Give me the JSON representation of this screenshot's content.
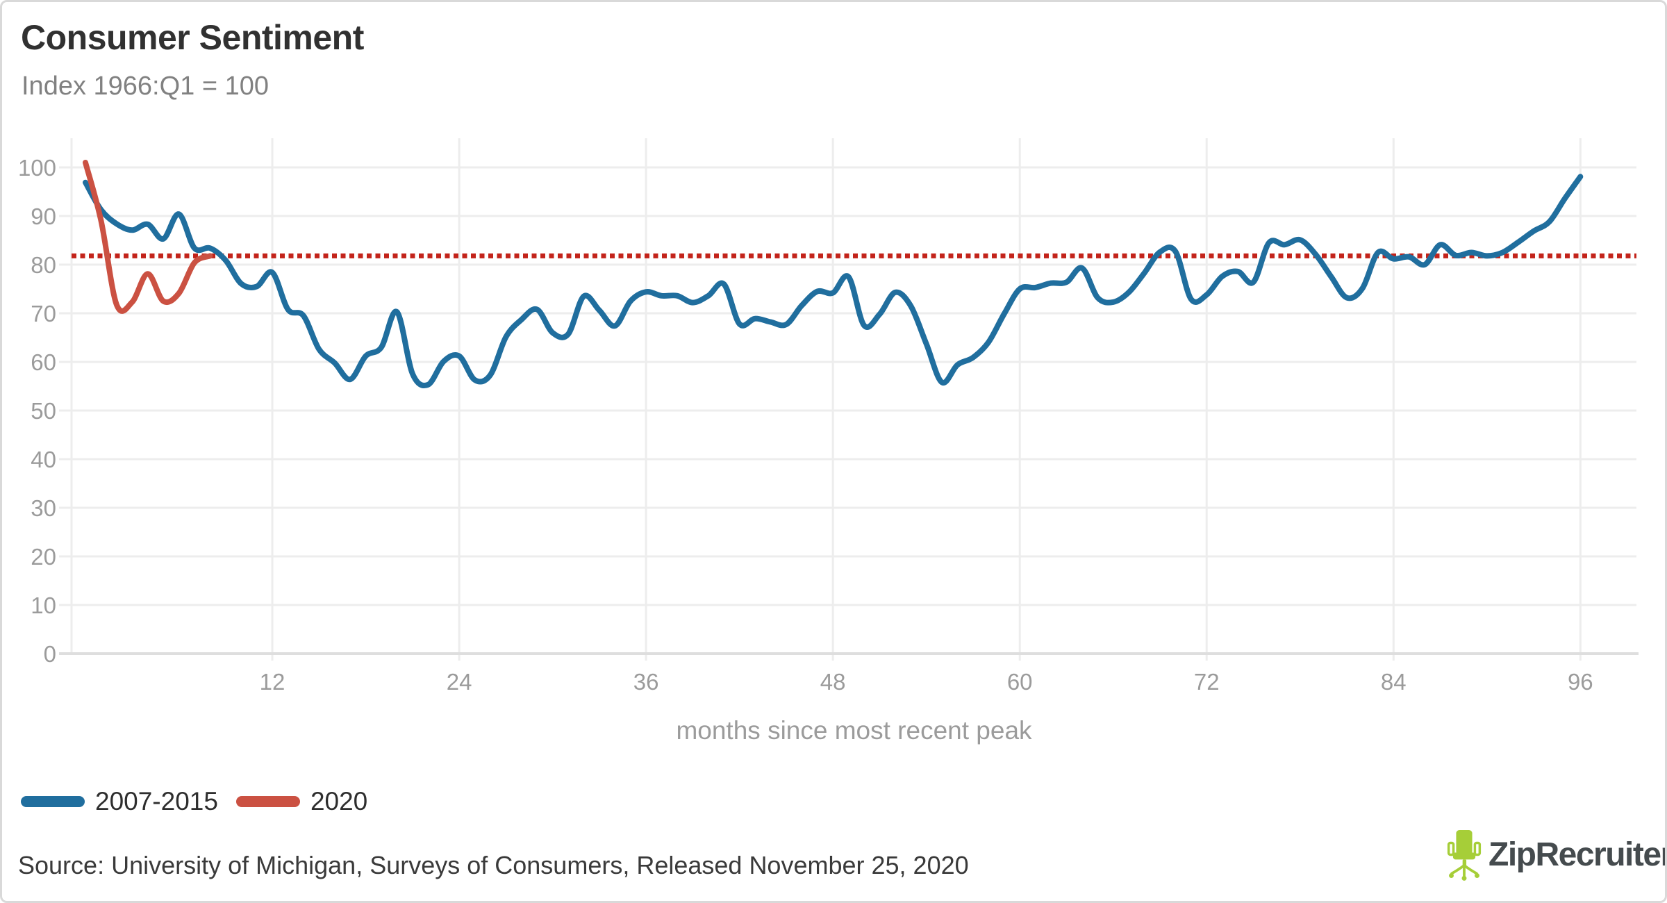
{
  "header": {
    "title": "Consumer Sentiment",
    "subtitle": "Index 1966:Q1 = 100"
  },
  "chart_data": {
    "type": "line",
    "title": "Consumer Sentiment",
    "subtitle": "Index 1966:Q1 = 100",
    "xlabel": "months since most recent peak",
    "ylabel": "",
    "xlim": [
      -1,
      100
    ],
    "ylim": [
      0,
      105
    ],
    "grid": true,
    "x_ticks": [
      12,
      24,
      36,
      48,
      60,
      72,
      84,
      96
    ],
    "y_ticks": [
      0,
      10,
      20,
      30,
      40,
      50,
      60,
      70,
      80,
      90,
      100
    ],
    "reference_line": {
      "value": 81.8,
      "style": "dotted",
      "color": "#c3231a",
      "meaning": "latest 2020 level"
    },
    "legend_position": "bottom-left",
    "series": [
      {
        "name": "2007-2015",
        "color": "#206e9e",
        "x_start": 0,
        "x_step": 1,
        "values": [
          96.9,
          91.3,
          88.4,
          87.1,
          88.3,
          85.3,
          90.4,
          83.4,
          83.4,
          80.9,
          76.1,
          75.5,
          78.4,
          70.8,
          69.5,
          62.6,
          59.8,
          56.4,
          61.2,
          63.0,
          70.3,
          57.6,
          55.3,
          60.1,
          61.2,
          56.3,
          57.3,
          65.1,
          68.7,
          70.8,
          66.0,
          65.7,
          73.5,
          70.6,
          67.4,
          72.5,
          74.4,
          73.6,
          73.6,
          72.2,
          73.6,
          76.0,
          67.8,
          68.9,
          68.2,
          67.7,
          71.6,
          74.5,
          74.2,
          77.5,
          67.5,
          69.8,
          74.3,
          71.5,
          63.7,
          55.8,
          59.4,
          60.9,
          64.1,
          69.9,
          75.0,
          75.3,
          76.2,
          76.4,
          79.3,
          73.2,
          72.3,
          74.3,
          78.3,
          82.6,
          82.7,
          72.9,
          73.8,
          77.6,
          78.6,
          76.4,
          84.5,
          84.1,
          85.1,
          82.1,
          77.5,
          73.2,
          75.1,
          82.5,
          81.2,
          81.6,
          80.0,
          84.1,
          81.9,
          82.5,
          81.8,
          82.5,
          84.6,
          86.9,
          88.8,
          93.6,
          98.1
        ]
      },
      {
        "name": "2020",
        "color": "#cb5142",
        "x_start": 0,
        "x_step": 1,
        "values": [
          101.0,
          89.1,
          71.8,
          72.3,
          78.1,
          72.5,
          74.1,
          80.4,
          81.8
        ]
      }
    ],
    "style": {
      "gridline_color": "#ededed",
      "axis_line_color": "#dedede",
      "tick_label_color": "#9b9b9b",
      "line_width": 8
    }
  },
  "footer": {
    "source": "Source: University of Michigan, Surveys of Consumers, Released November 25, 2020"
  },
  "branding": {
    "logo_text": "ZipRecruiter",
    "registered_mark": "®",
    "logo_green": "#a6ce38",
    "logo_text_color": "#454b4e"
  }
}
